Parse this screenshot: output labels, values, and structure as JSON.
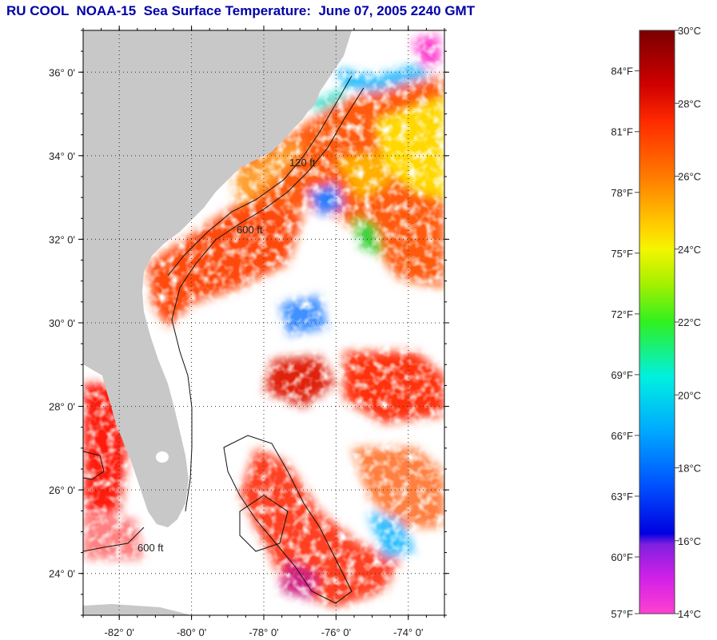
{
  "title": "RU COOL  NOAA-15  Sea Surface Temperature:  June 07, 2005 2240 GMT",
  "map": {
    "lat_range": [
      23.0,
      37.0
    ],
    "lon_range": [
      -83.0,
      -73.0
    ],
    "lat_ticks": [
      {
        "value": 24,
        "label": "24° 0'"
      },
      {
        "value": 26,
        "label": "26° 0'"
      },
      {
        "value": 28,
        "label": "28° 0'"
      },
      {
        "value": 30,
        "label": "30° 0'"
      },
      {
        "value": 32,
        "label": "32° 0'"
      },
      {
        "value": 34,
        "label": "34° 0'"
      },
      {
        "value": 36,
        "label": "36° 0'"
      }
    ],
    "lon_ticks": [
      {
        "value": -82,
        "label": "-82° 0'"
      },
      {
        "value": -80,
        "label": "-80° 0'"
      },
      {
        "value": -78,
        "label": "-78° 0'"
      },
      {
        "value": -76,
        "label": "-76° 0'"
      },
      {
        "value": -74,
        "label": "-74° 0'"
      }
    ],
    "grid": true,
    "land_color": "#c8c8c8",
    "cloud_color": "#ffffff",
    "isobath_labels": [
      "120 ft",
      "600 ft"
    ]
  },
  "colorbar": {
    "celsius_range": [
      14,
      30
    ],
    "celsius_labels": [
      "30°C",
      "28°C",
      "26°C",
      "24°C",
      "22°C",
      "20°C",
      "18°C",
      "16°C",
      "14°C"
    ],
    "celsius_values": [
      30,
      28,
      26,
      24,
      22,
      20,
      18,
      16,
      14
    ],
    "fahrenheit_labels": [
      "84°F",
      "81°F",
      "78°F",
      "75°F",
      "72°F",
      "69°F",
      "66°F",
      "63°F",
      "60°F",
      "57°F"
    ],
    "fahrenheit_values": [
      84,
      81,
      78,
      75,
      72,
      69,
      66,
      63,
      60,
      57
    ],
    "stops": [
      {
        "c": 30,
        "color": "#7a0000"
      },
      {
        "c": 28.5,
        "color": "#d00000"
      },
      {
        "c": 27.5,
        "color": "#ff2a00"
      },
      {
        "c": 26,
        "color": "#ff7a00"
      },
      {
        "c": 24.6,
        "color": "#ffd000"
      },
      {
        "c": 24,
        "color": "#f5f500"
      },
      {
        "c": 23,
        "color": "#a0f000"
      },
      {
        "c": 22,
        "color": "#30f020"
      },
      {
        "c": 20.5,
        "color": "#00f0e0"
      },
      {
        "c": 19,
        "color": "#00a8ff"
      },
      {
        "c": 17.5,
        "color": "#0050ff"
      },
      {
        "c": 16.2,
        "color": "#0000e0"
      },
      {
        "c": 15.9,
        "color": "#8020e0"
      },
      {
        "c": 15,
        "color": "#d020e8"
      },
      {
        "c": 14,
        "color": "#ff40d0"
      }
    ]
  }
}
